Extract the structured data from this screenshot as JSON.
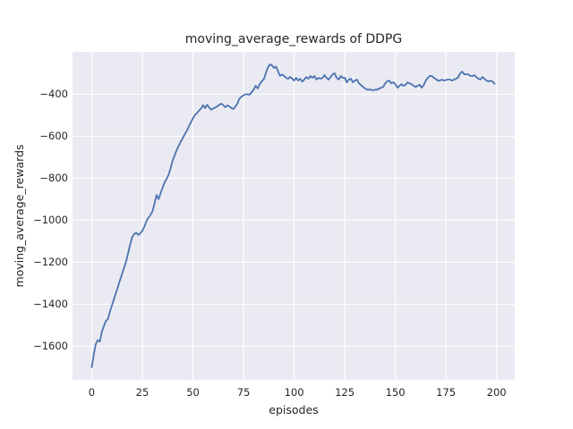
{
  "chart_data": {
    "type": "line",
    "title": "moving_average_rewards of DDPG",
    "xlabel": "episodes",
    "ylabel": "moving_average_rewards",
    "xlim": [
      -9.5,
      209
    ],
    "ylim": [
      -1760,
      -198
    ],
    "x_ticks": [
      0,
      25,
      50,
      75,
      100,
      125,
      150,
      175,
      200
    ],
    "y_ticks": [
      -400,
      -600,
      -800,
      -1000,
      -1200,
      -1400,
      -1600
    ],
    "grid": true,
    "legend": null,
    "style": {
      "plot_background": "#eaeaf2",
      "figure_background": "#ffffff",
      "grid_color": "#ffffff",
      "line_color": "#4c72b0",
      "text_color": "#262626"
    },
    "series": [
      {
        "name": "moving_average_rewards",
        "x": [
          0,
          1,
          2,
          3,
          4,
          5,
          6,
          7,
          8,
          9,
          10,
          11,
          12,
          13,
          14,
          15,
          16,
          17,
          18,
          19,
          20,
          21,
          22,
          23,
          24,
          25,
          26,
          27,
          28,
          29,
          30,
          31,
          32,
          33,
          34,
          35,
          36,
          37,
          38,
          39,
          40,
          41,
          42,
          43,
          44,
          45,
          46,
          47,
          48,
          49,
          50,
          51,
          52,
          53,
          54,
          55,
          56,
          57,
          58,
          59,
          60,
          61,
          62,
          63,
          64,
          65,
          66,
          67,
          68,
          69,
          70,
          71,
          72,
          73,
          74,
          75,
          76,
          77,
          78,
          79,
          80,
          81,
          82,
          83,
          84,
          85,
          86,
          87,
          88,
          89,
          90,
          91,
          92,
          93,
          94,
          95,
          96,
          97,
          98,
          99,
          100,
          101,
          102,
          103,
          104,
          105,
          106,
          107,
          108,
          109,
          110,
          111,
          112,
          113,
          114,
          115,
          116,
          117,
          118,
          119,
          120,
          121,
          122,
          123,
          124,
          125,
          126,
          127,
          128,
          129,
          130,
          131,
          132,
          133,
          134,
          135,
          136,
          137,
          138,
          139,
          140,
          141,
          142,
          143,
          144,
          145,
          146,
          147,
          148,
          149,
          150,
          151,
          152,
          153,
          154,
          155,
          156,
          157,
          158,
          159,
          160,
          161,
          162,
          163,
          164,
          165,
          166,
          167,
          168,
          169,
          170,
          171,
          172,
          173,
          174,
          175,
          176,
          177,
          178,
          179,
          180,
          181,
          182,
          183,
          184,
          185,
          186,
          187,
          188,
          189,
          190,
          191,
          192,
          193,
          194,
          195,
          196,
          197,
          198,
          199
        ],
        "y": [
          -1700,
          -1640,
          -1590,
          -1570,
          -1578,
          -1530,
          -1505,
          -1480,
          -1470,
          -1435,
          -1405,
          -1375,
          -1345,
          -1315,
          -1285,
          -1255,
          -1225,
          -1195,
          -1155,
          -1115,
          -1080,
          -1065,
          -1060,
          -1070,
          -1062,
          -1050,
          -1030,
          -1005,
          -988,
          -975,
          -958,
          -920,
          -880,
          -900,
          -872,
          -845,
          -820,
          -803,
          -783,
          -750,
          -715,
          -690,
          -665,
          -645,
          -625,
          -608,
          -590,
          -573,
          -553,
          -533,
          -515,
          -498,
          -490,
          -478,
          -468,
          -452,
          -466,
          -450,
          -463,
          -474,
          -468,
          -463,
          -458,
          -450,
          -445,
          -452,
          -462,
          -453,
          -458,
          -466,
          -470,
          -458,
          -443,
          -420,
          -412,
          -405,
          -400,
          -400,
          -402,
          -390,
          -378,
          -360,
          -372,
          -352,
          -338,
          -328,
          -300,
          -272,
          -258,
          -262,
          -275,
          -268,
          -290,
          -312,
          -306,
          -312,
          -322,
          -326,
          -317,
          -326,
          -335,
          -322,
          -335,
          -326,
          -340,
          -330,
          -318,
          -326,
          -313,
          -322,
          -313,
          -330,
          -322,
          -326,
          -322,
          -309,
          -322,
          -330,
          -318,
          -305,
          -300,
          -322,
          -330,
          -313,
          -322,
          -322,
          -343,
          -330,
          -326,
          -343,
          -335,
          -330,
          -348,
          -356,
          -365,
          -373,
          -378,
          -378,
          -378,
          -382,
          -378,
          -378,
          -373,
          -369,
          -365,
          -348,
          -337,
          -335,
          -348,
          -343,
          -352,
          -369,
          -360,
          -352,
          -360,
          -356,
          -343,
          -348,
          -352,
          -360,
          -365,
          -360,
          -354,
          -369,
          -356,
          -335,
          -322,
          -313,
          -313,
          -322,
          -328,
          -335,
          -335,
          -330,
          -335,
          -332,
          -330,
          -330,
          -335,
          -330,
          -326,
          -320,
          -300,
          -292,
          -305,
          -305,
          -305,
          -313,
          -313,
          -309,
          -318,
          -326,
          -330,
          -318,
          -326,
          -335,
          -339,
          -335,
          -339,
          -350
        ]
      }
    ]
  }
}
